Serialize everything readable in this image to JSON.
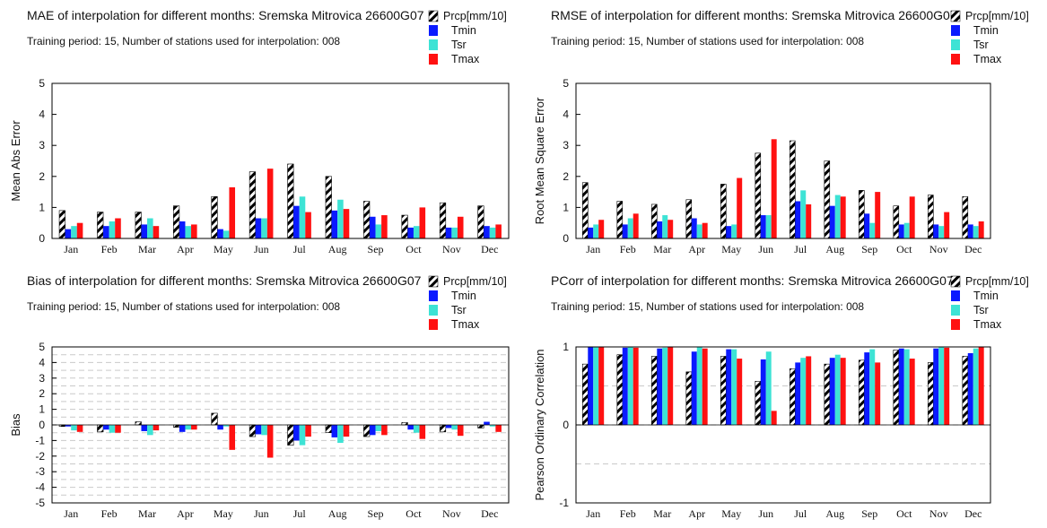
{
  "colors": {
    "Prcp": "hatch-black-white",
    "Tmin": "#0a1aff",
    "Tsr": "#3de3d5",
    "Tmax": "#ff1111"
  },
  "chart_data": [
    {
      "type": "bar",
      "title": "MAE of interpolation for different months: Sremska Mitrovica  26600G07",
      "subtitle": "Training period: 15, Number of stations used for interpolation: 008",
      "ylabel": "Mean Abs Error",
      "xlabel": "",
      "ylim": [
        0,
        5
      ],
      "yticks": [
        0,
        1,
        2,
        3,
        4,
        5
      ],
      "grid": false,
      "legend_position": "top-right",
      "categories": [
        "Jan",
        "Feb",
        "Mar",
        "Apr",
        "May",
        "Jun",
        "Jul",
        "Aug",
        "Sep",
        "Oct",
        "Nov",
        "Dec"
      ],
      "series": [
        {
          "name": "Prcp[mm/10]",
          "values": [
            0.9,
            0.85,
            0.85,
            1.05,
            1.35,
            2.15,
            2.4,
            2.0,
            1.2,
            0.75,
            1.15,
            1.05
          ]
        },
        {
          "name": "Tmin",
          "values": [
            0.3,
            0.4,
            0.45,
            0.55,
            0.3,
            0.65,
            1.05,
            0.9,
            0.7,
            0.35,
            0.35,
            0.4
          ]
        },
        {
          "name": "Tsr",
          "values": [
            0.4,
            0.55,
            0.65,
            0.4,
            0.25,
            0.65,
            1.35,
            1.25,
            0.45,
            0.4,
            0.35,
            0.35
          ]
        },
        {
          "name": "Tmax",
          "values": [
            0.5,
            0.65,
            0.4,
            0.45,
            1.65,
            2.25,
            0.85,
            0.95,
            0.75,
            1.0,
            0.7,
            0.45
          ]
        }
      ]
    },
    {
      "type": "bar",
      "title": "RMSE of interpolation for different months: Sremska Mitrovica  26600G07",
      "subtitle": "Training period: 15, Number of stations used for interpolation: 008",
      "ylabel": "Root Mean Square Error",
      "xlabel": "",
      "ylim": [
        0,
        5
      ],
      "yticks": [
        0,
        1,
        2,
        3,
        4,
        5
      ],
      "grid": false,
      "legend_position": "top-right",
      "categories": [
        "Jan",
        "Feb",
        "Mar",
        "Apr",
        "May",
        "Jun",
        "Jul",
        "Aug",
        "Sep",
        "Oct",
        "Nov",
        "Dec"
      ],
      "series": [
        {
          "name": "Prcp[mm/10]",
          "values": [
            1.8,
            1.2,
            1.1,
            1.25,
            1.75,
            2.75,
            3.15,
            2.5,
            1.55,
            1.05,
            1.4,
            1.35
          ]
        },
        {
          "name": "Tmin",
          "values": [
            0.35,
            0.45,
            0.55,
            0.65,
            0.4,
            0.75,
            1.2,
            1.05,
            0.8,
            0.45,
            0.45,
            0.45
          ]
        },
        {
          "name": "Tsr",
          "values": [
            0.45,
            0.65,
            0.75,
            0.45,
            0.45,
            0.75,
            1.55,
            1.4,
            0.5,
            0.5,
            0.4,
            0.4
          ]
        },
        {
          "name": "Tmax",
          "values": [
            0.6,
            0.8,
            0.6,
            0.5,
            1.95,
            3.2,
            1.1,
            1.35,
            1.5,
            1.35,
            0.85,
            0.55
          ]
        }
      ]
    },
    {
      "type": "bar",
      "title": "Bias of interpolation for different months: Sremska Mitrovica  26600G07",
      "subtitle": "Training period: 15, Number of stations used for interpolation: 008",
      "ylabel": "Bias",
      "xlabel": "",
      "ylim": [
        -5,
        5
      ],
      "yticks": [
        -5,
        -4,
        -3,
        -2,
        -1,
        0,
        1,
        2,
        3,
        4,
        5
      ],
      "grid": true,
      "legend_position": "top-right",
      "categories": [
        "Jan",
        "Feb",
        "Mar",
        "Apr",
        "May",
        "Jun",
        "Jul",
        "Aug",
        "Sep",
        "Oct",
        "Nov",
        "Dec"
      ],
      "series": [
        {
          "name": "Prcp[mm/10]",
          "values": [
            -0.1,
            -0.45,
            0.2,
            -0.15,
            0.75,
            -0.75,
            -1.3,
            -0.5,
            -0.75,
            0.15,
            -0.45,
            -0.2
          ]
        },
        {
          "name": "Tmin",
          "values": [
            -0.1,
            -0.3,
            -0.4,
            -0.45,
            -0.3,
            -0.6,
            -1.0,
            -0.8,
            -0.65,
            -0.3,
            -0.2,
            0.2
          ]
        },
        {
          "name": "Tsr",
          "values": [
            -0.35,
            -0.5,
            -0.65,
            -0.3,
            -0.1,
            -0.65,
            -1.3,
            -1.15,
            -0.4,
            -0.5,
            -0.3,
            -0.1
          ]
        },
        {
          "name": "Tmax",
          "values": [
            -0.45,
            -0.5,
            -0.35,
            -0.3,
            -1.6,
            -2.1,
            -0.75,
            -0.75,
            -0.65,
            -0.9,
            -0.7,
            -0.45
          ]
        }
      ]
    },
    {
      "type": "bar",
      "title": "PCorr of interpolation for different months: Sremska Mitrovica  26600G07",
      "subtitle": "Training period: 15, Number of stations used for interpolation: 008",
      "ylabel": "Pearson Ordinary Correlation",
      "xlabel": "",
      "ylim": [
        -1,
        1
      ],
      "yticks": [
        -1,
        0,
        1
      ],
      "grid": true,
      "legend_position": "top-right",
      "categories": [
        "Jan",
        "Feb",
        "Mar",
        "Apr",
        "May",
        "Jun",
        "Jul",
        "Aug",
        "Sep",
        "Oct",
        "Nov",
        "Dec"
      ],
      "series": [
        {
          "name": "Prcp[mm/10]",
          "values": [
            0.78,
            0.9,
            0.88,
            0.68,
            0.88,
            0.56,
            0.72,
            0.78,
            0.83,
            0.96,
            0.8,
            0.88
          ]
        },
        {
          "name": "Tmin",
          "values": [
            1.0,
            0.99,
            0.98,
            0.94,
            0.97,
            0.84,
            0.8,
            0.86,
            0.93,
            0.98,
            0.98,
            0.92
          ]
        },
        {
          "name": "Tsr",
          "values": [
            1.0,
            1.0,
            0.99,
            1.0,
            0.97,
            0.94,
            0.86,
            0.9,
            0.97,
            0.97,
            1.0,
            0.98
          ]
        },
        {
          "name": "Tmax",
          "values": [
            1.0,
            0.99,
            1.0,
            0.98,
            0.85,
            0.18,
            0.88,
            0.86,
            0.8,
            0.85,
            0.99,
            1.0
          ]
        }
      ]
    }
  ]
}
